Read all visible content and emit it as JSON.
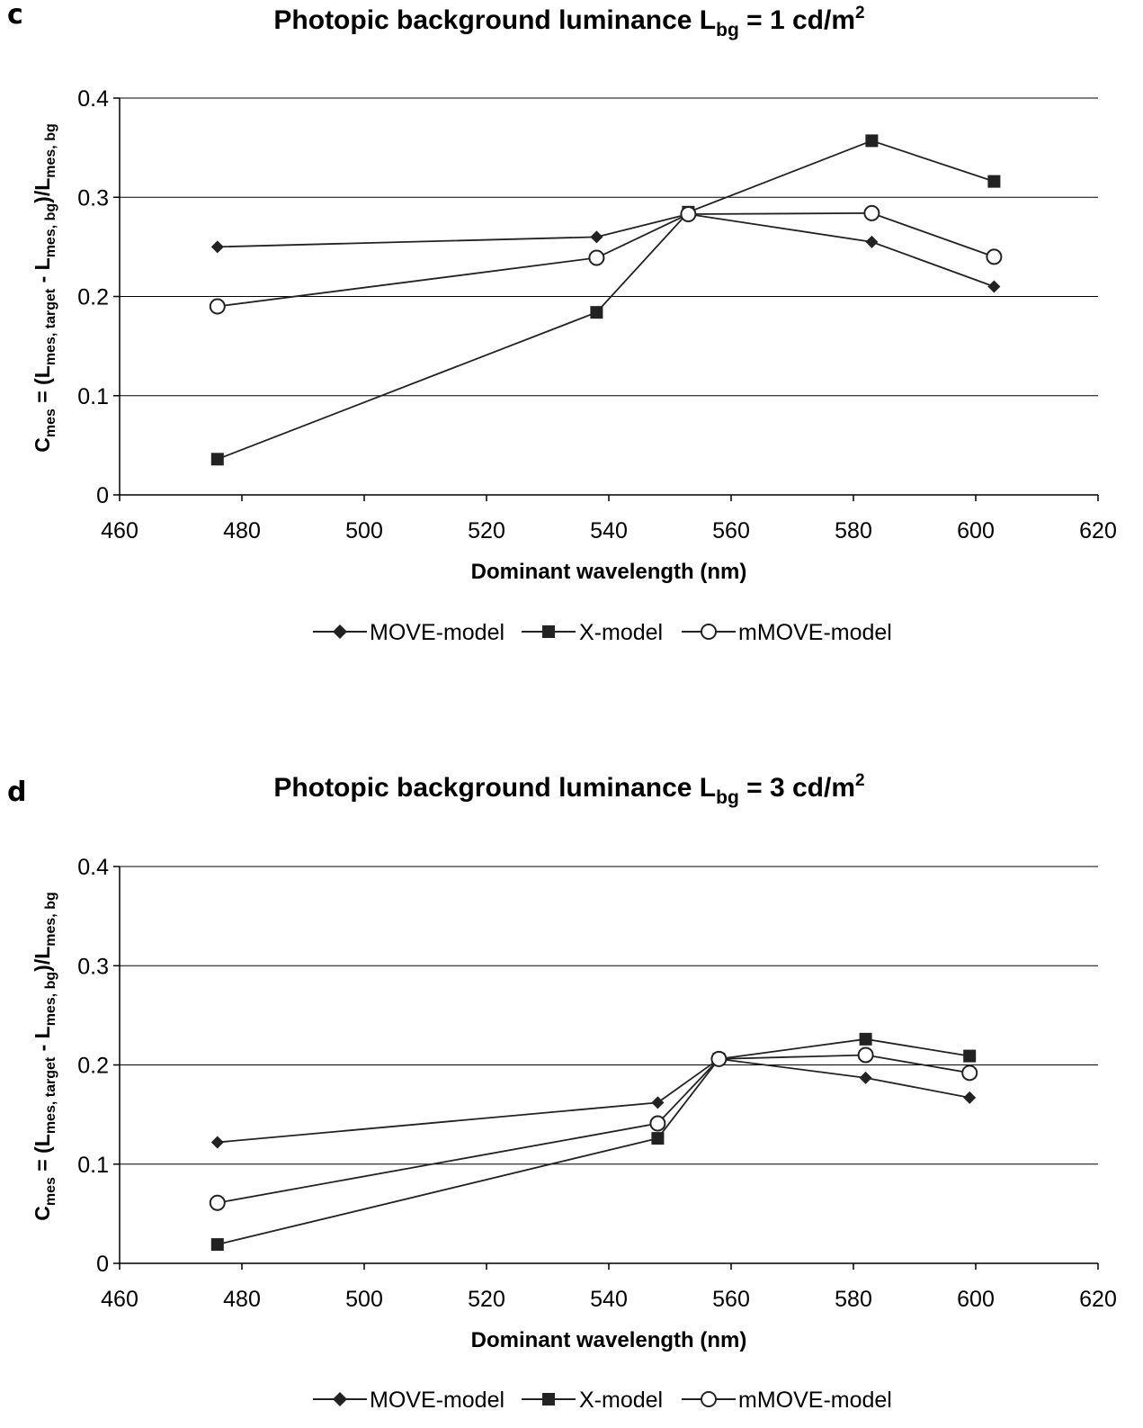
{
  "chart_data": [
    {
      "panel": "c",
      "type": "line",
      "title": {
        "main": "Photopic background luminance L",
        "sub": "bg",
        "rest": " = 1 cd/m",
        "sup": "2"
      },
      "xlabel": "Dominant wavelength (nm)",
      "ylabel": {
        "p1": "C",
        "s1": "mes",
        "p2": " = (L",
        "s2": "mes, target",
        "p3": " - L",
        "s3": "mes, bg",
        "p4": ")/L",
        "s4": "mes, bg"
      },
      "xlim": [
        460,
        620
      ],
      "ylim": [
        0,
        0.4
      ],
      "xticks": [
        "460",
        "480",
        "500",
        "520",
        "540",
        "560",
        "580",
        "600",
        "620"
      ],
      "yticks": [
        "0",
        "0.1",
        "0.2",
        "0.3",
        "0.4"
      ],
      "grid": "horizontal",
      "legend_position": "bottom",
      "series": [
        {
          "name": "MOVE-model",
          "marker": "diamond",
          "x": [
            476,
            538,
            553,
            583,
            603
          ],
          "y": [
            0.25,
            0.26,
            0.283,
            0.255,
            0.21
          ]
        },
        {
          "name": "X-model",
          "marker": "square",
          "x": [
            476,
            538,
            553,
            583,
            603
          ],
          "y": [
            0.036,
            0.184,
            0.285,
            0.357,
            0.316
          ]
        },
        {
          "name": "mMOVE-model",
          "marker": "circle",
          "x": [
            476,
            538,
            553,
            583,
            603
          ],
          "y": [
            0.19,
            0.239,
            0.283,
            0.284,
            0.24
          ]
        }
      ]
    },
    {
      "panel": "d",
      "type": "line",
      "title": {
        "main": "Photopic background luminance L",
        "sub": "bg",
        "rest": " = 3 cd/m",
        "sup": "2"
      },
      "xlabel": "Dominant wavelength (nm)",
      "ylabel": {
        "p1": "C",
        "s1": "mes",
        "p2": " = (L",
        "s2": "mes, target",
        "p3": " - L",
        "s3": "mes, bg",
        "p4": ")/L",
        "s4": "mes, bg"
      },
      "xlim": [
        460,
        620
      ],
      "ylim": [
        0,
        0.4
      ],
      "xticks": [
        "460",
        "480",
        "500",
        "520",
        "540",
        "560",
        "580",
        "600",
        "620"
      ],
      "yticks": [
        "0",
        "0.1",
        "0.2",
        "0.3",
        "0.4"
      ],
      "grid": "horizontal",
      "legend_position": "bottom",
      "series": [
        {
          "name": "MOVE-model",
          "marker": "diamond",
          "x": [
            476,
            548,
            558,
            582,
            599
          ],
          "y": [
            0.122,
            0.162,
            0.206,
            0.187,
            0.167
          ]
        },
        {
          "name": "X-model",
          "marker": "square",
          "x": [
            476,
            548,
            558,
            582,
            599
          ],
          "y": [
            0.019,
            0.126,
            0.206,
            0.226,
            0.209
          ]
        },
        {
          "name": "mMOVE-model",
          "marker": "circle",
          "x": [
            476,
            548,
            558,
            582,
            599
          ],
          "y": [
            0.061,
            0.141,
            0.206,
            0.21,
            0.192
          ]
        }
      ]
    }
  ]
}
